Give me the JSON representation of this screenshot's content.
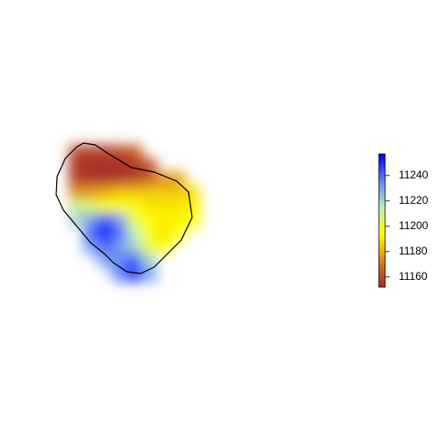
{
  "chart_data": {
    "type": "raster",
    "z": [
      [
        null,
        11160,
        11158,
        11158,
        11160,
        11165,
        null,
        null,
        null,
        null
      ],
      [
        null,
        11155,
        11153,
        11153,
        11153,
        11155,
        11160,
        null,
        null,
        null
      ],
      [
        null,
        11158,
        11155,
        11155,
        11155,
        11158,
        11165,
        11175,
        11178,
        null
      ],
      [
        null,
        11175,
        11178,
        11180,
        11185,
        11185,
        11185,
        11185,
        11185,
        11188
      ],
      [
        null,
        11210,
        11205,
        11195,
        11195,
        11195,
        11190,
        11190,
        11190,
        11192
      ],
      [
        null,
        11220,
        11230,
        11245,
        11230,
        11200,
        11195,
        11192,
        11192,
        11195
      ],
      [
        null,
        null,
        11240,
        11257,
        11240,
        11215,
        11195,
        11190,
        11195,
        null
      ],
      [
        null,
        null,
        11230,
        11240,
        11230,
        11220,
        11200,
        11195,
        null,
        null
      ],
      [
        null,
        null,
        null,
        11230,
        11235,
        11245,
        11220,
        null,
        null,
        null
      ],
      [
        null,
        null,
        null,
        null,
        11235,
        11250,
        11230,
        null,
        null,
        null
      ]
    ],
    "zlim": [
      11152,
      11257
    ],
    "zticks": [
      11160,
      11180,
      11200,
      11220,
      11240
    ],
    "colorscale": [
      "#a52a2a",
      "#e08020",
      "#ffff00",
      "#b8f0c0",
      "#6080ff",
      "#0000ff"
    ]
  }
}
